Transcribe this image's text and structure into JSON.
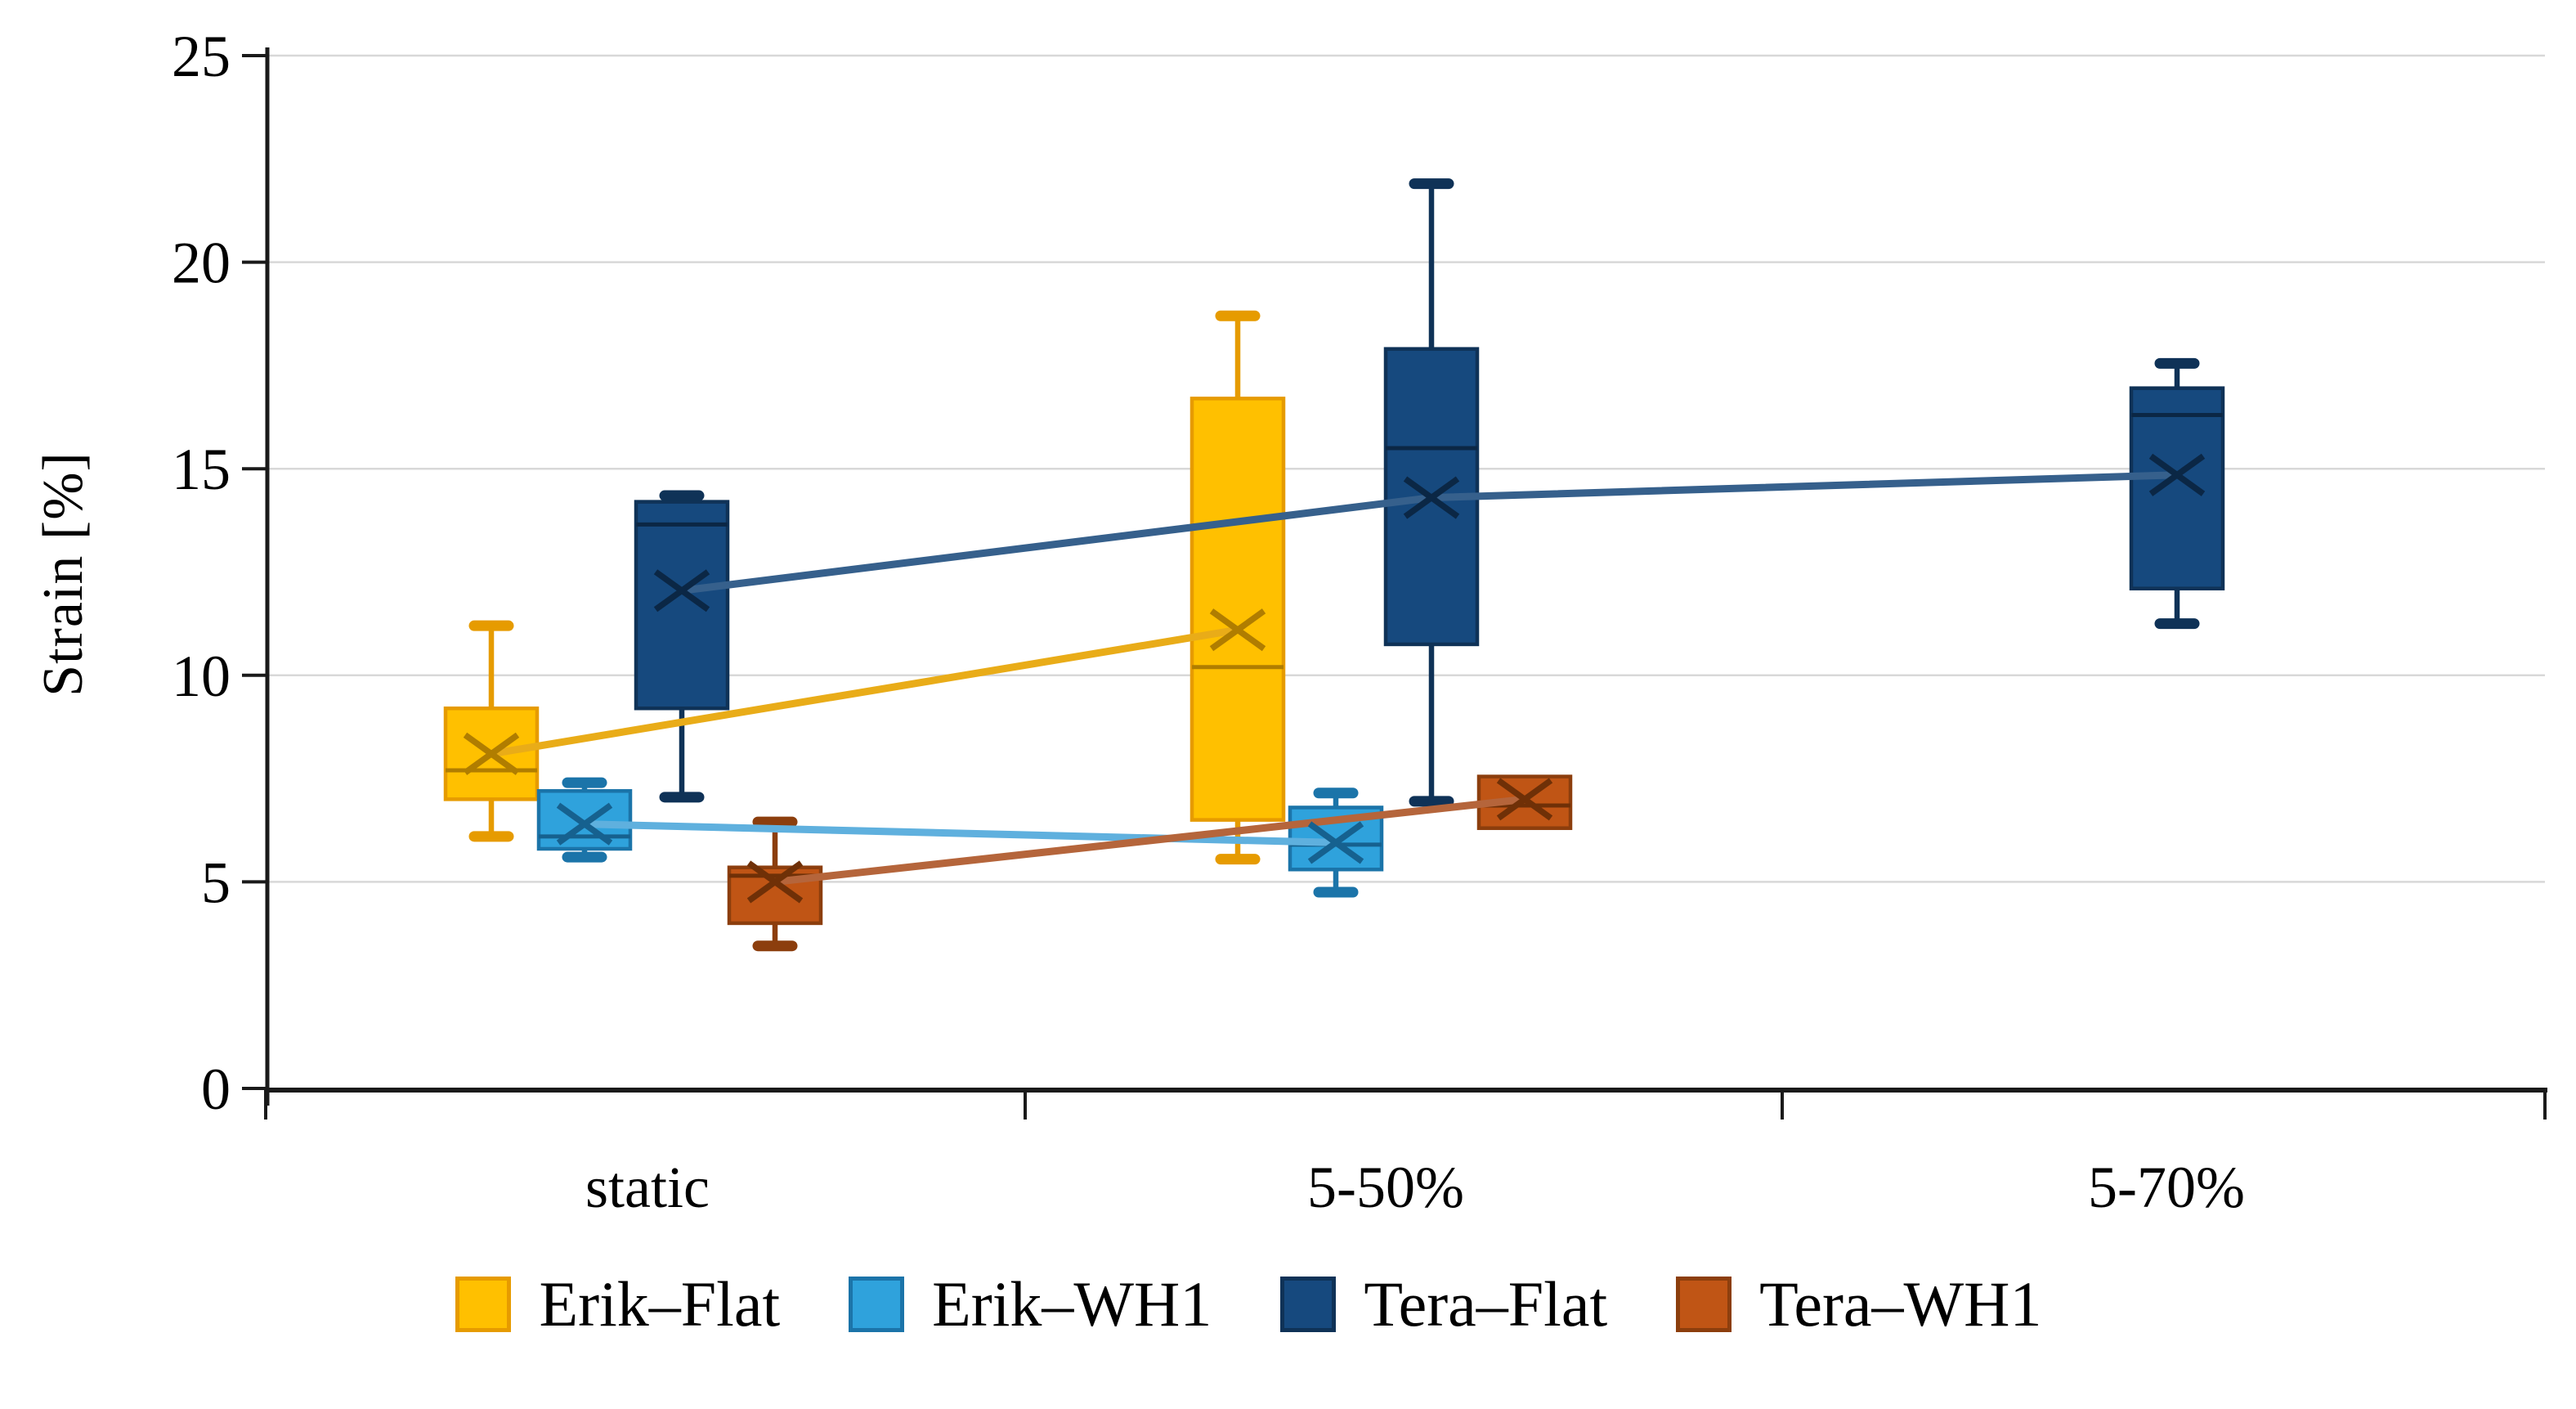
{
  "chart_data": {
    "type": "boxplot",
    "title": "",
    "ylabel": "Strain [%]",
    "xlabel": "",
    "categories": [
      "static",
      "5-50%",
      "5-70%"
    ],
    "y_axis": {
      "min": 0,
      "max": 25,
      "step": 5,
      "tick_labels": [
        "0",
        "5",
        "10",
        "15",
        "20",
        "25"
      ]
    },
    "grid": true,
    "legend_position": "bottom",
    "colors": {
      "gridline": "#D8D8D8",
      "axis": "#1A1A1A",
      "background": "#FFFFFF"
    },
    "series": [
      {
        "name": "Erik–Flat",
        "fill": "#FFC000",
        "stroke": "#E69B00",
        "dark": "#B07D00",
        "line": "#E9AC18",
        "boxes": [
          {
            "category": "static",
            "low": 6.1,
            "q1": 7.0,
            "median": 7.7,
            "q3": 9.2,
            "high": 11.2,
            "mean": 8.1
          },
          {
            "category": "5-50%",
            "low": 5.55,
            "q1": 6.5,
            "median": 10.2,
            "q3": 16.7,
            "high": 18.7,
            "mean": 11.1
          }
        ]
      },
      {
        "name": "Erik–WH1",
        "fill": "#2FA2DC",
        "stroke": "#1B74A9",
        "dark": "#16618F",
        "line": "#5FB0DE",
        "boxes": [
          {
            "category": "static",
            "low": 5.6,
            "q1": 5.8,
            "median": 6.1,
            "q3": 7.2,
            "high": 7.4,
            "mean": 6.4
          },
          {
            "category": "5-50%",
            "low": 4.75,
            "q1": 5.3,
            "median": 5.9,
            "q3": 6.8,
            "high": 7.15,
            "mean": 5.95
          }
        ]
      },
      {
        "name": "Tera–Flat",
        "fill": "#16497E",
        "stroke": "#0F3257",
        "dark": "#0B2745",
        "line": "#36608C",
        "boxes": [
          {
            "category": "static",
            "low": 7.05,
            "q1": 9.2,
            "median": 13.65,
            "q3": 14.2,
            "high": 14.35,
            "mean": 12.05
          },
          {
            "category": "5-50%",
            "low": 6.95,
            "q1": 10.75,
            "median": 15.5,
            "q3": 17.9,
            "high": 21.9,
            "mean": 14.3
          },
          {
            "category": "5-70%",
            "low": 11.25,
            "q1": 12.1,
            "median": 16.3,
            "q3": 16.95,
            "high": 17.55,
            "mean": 14.85
          }
        ]
      },
      {
        "name": "Tera–WH1",
        "fill": "#C05515",
        "stroke": "#8C3E0D",
        "dark": "#6F3007",
        "line": "#B5653B",
        "boxes": [
          {
            "category": "static",
            "low": 3.45,
            "q1": 4.0,
            "median": 5.15,
            "q3": 5.35,
            "high": 6.45,
            "mean": 5.0
          },
          {
            "category": "5-50%",
            "low": 6.3,
            "q1": 6.3,
            "median": 6.85,
            "q3": 7.55,
            "high": 7.55,
            "mean": 7.0
          }
        ]
      }
    ]
  }
}
